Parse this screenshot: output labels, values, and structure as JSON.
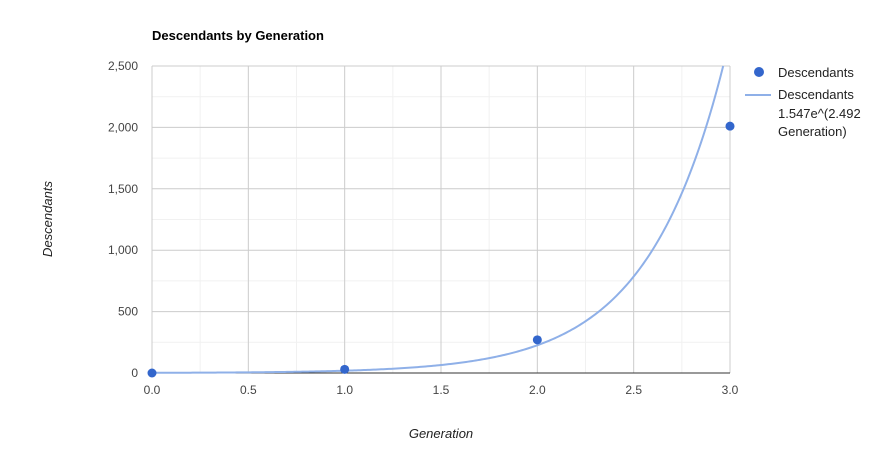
{
  "chart_data": {
    "type": "scatter",
    "title": "Descendants by Generation",
    "xlabel": "Generation",
    "ylabel": "Descendants",
    "xlim": [
      0,
      3
    ],
    "ylim": [
      0,
      2500
    ],
    "x_ticks": [
      0.0,
      0.5,
      1.0,
      1.5,
      2.0,
      2.5,
      3.0
    ],
    "x_tick_labels": [
      "0.0",
      "0.5",
      "1.0",
      "1.5",
      "2.0",
      "2.5",
      "3.0"
    ],
    "y_ticks": [
      0,
      500,
      1000,
      1500,
      2000,
      2500
    ],
    "y_tick_labels": [
      "0",
      "500",
      "1,000",
      "1,500",
      "2,000",
      "2,500"
    ],
    "grid": true,
    "legend_position": "right",
    "series": [
      {
        "name": "Descendants",
        "kind": "points",
        "color": "#3366cc",
        "x": [
          0,
          1,
          2,
          3
        ],
        "y": [
          0,
          30,
          270,
          2010
        ]
      }
    ],
    "trendline": {
      "kind": "exponential",
      "a": 1.547,
      "b": 2.492,
      "color": "#8fb0e8",
      "legend_lines": [
        "Descendants",
        "1.547e^(2.492",
        "Generation)"
      ]
    }
  }
}
